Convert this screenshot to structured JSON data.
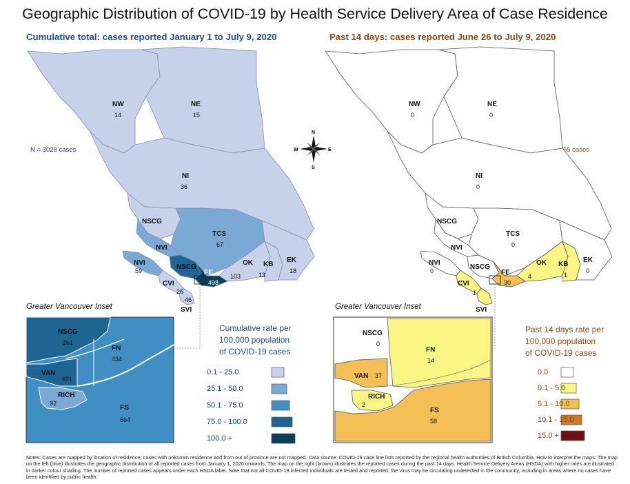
{
  "title": "Geographic Distribution of COVID-19 by Health Service Delivery Area of Case Residence",
  "left_map": {
    "subtitle": "Cumulative total: cases reported January 1 to July 9, 2020",
    "n_cases": "N = 3028 cases",
    "regions": [
      {
        "code": "NW",
        "value": "14"
      },
      {
        "code": "NE",
        "value": "15"
      },
      {
        "code": "NI",
        "value": "36"
      },
      {
        "code": "NSCG",
        "value": ""
      },
      {
        "code": "TCS",
        "value": "67"
      },
      {
        "code": "NVI",
        "value": ""
      },
      {
        "code": "NVI",
        "value": "59"
      },
      {
        "code": "NSCG",
        "value": ""
      },
      {
        "code": "OK",
        "value": "103"
      },
      {
        "code": "KB",
        "value": "13"
      },
      {
        "code": "EK",
        "value": "18"
      },
      {
        "code": "FE",
        "value": "498"
      },
      {
        "code": "CVI",
        "value": "26"
      },
      {
        "code": "SVI",
        "value": "46"
      }
    ],
    "inset_title": "Greater Vancouver Inset",
    "inset_regions": [
      {
        "code": "NSCG",
        "value": "261"
      },
      {
        "code": "FN",
        "value": "434"
      },
      {
        "code": "VAN",
        "value": "621"
      },
      {
        "code": "RICH",
        "value": "92"
      },
      {
        "code": "FS",
        "value": "664"
      }
    ],
    "legend_title": [
      "Cumulative rate per",
      "100,000 population",
      "of COVID-19 cases"
    ],
    "legend": [
      {
        "label": "0.1 - 25.0",
        "color": "#c7d1ea"
      },
      {
        "label": "25.1 - 50.0",
        "color": "#7aa9d6"
      },
      {
        "label": "50.1 - 75.0",
        "color": "#3f8fc4"
      },
      {
        "label": "75.0 - 100.0",
        "color": "#1f6591"
      },
      {
        "label": "100.0 +",
        "color": "#0c3e5a"
      }
    ]
  },
  "right_map": {
    "subtitle": "Past 14 days: cases reported June 26 to July 9, 2020",
    "n_cases": "N = 165 cases",
    "regions": [
      {
        "code": "NW",
        "value": "0"
      },
      {
        "code": "NE",
        "value": "0"
      },
      {
        "code": "NI",
        "value": "0"
      },
      {
        "code": "NSCG",
        "value": ""
      },
      {
        "code": "TCS",
        "value": "0"
      },
      {
        "code": "NVI",
        "value": ""
      },
      {
        "code": "NVI",
        "value": "0"
      },
      {
        "code": "NSCG",
        "value": ""
      },
      {
        "code": "OK",
        "value": "4"
      },
      {
        "code": "KB",
        "value": "1"
      },
      {
        "code": "EK",
        "value": "0"
      },
      {
        "code": "FE",
        "value": "30"
      },
      {
        "code": "CVI",
        "value": "1"
      },
      {
        "code": "SVI",
        "value": ""
      }
    ],
    "inset_title": "Greater Vancouver Inset",
    "inset_regions": [
      {
        "code": "NSCG",
        "value": "0"
      },
      {
        "code": "FN",
        "value": "14"
      },
      {
        "code": "VAN",
        "value": "37"
      },
      {
        "code": "RICH",
        "value": "2"
      },
      {
        "code": "FS",
        "value": "58"
      }
    ],
    "legend_title": [
      "Past 14 days rate per",
      "100,000 population",
      "of COVID-19 cases"
    ],
    "legend": [
      {
        "label": "0.0",
        "color": "#ffffff"
      },
      {
        "label": "0.1 - 5.0",
        "color": "#fbf684"
      },
      {
        "label": "5.1 - 10.0",
        "color": "#f4bf55"
      },
      {
        "label": "10.1 - 15.0",
        "color": "#d0782a"
      },
      {
        "label": "15.0 +",
        "color": "#6d0f0f"
      }
    ]
  },
  "compass": {
    "n": "N",
    "s": "S",
    "e": "E",
    "w": "W"
  },
  "notes": "Notes: Cases are mapped by location of residence; cases with unknown residence and from out of province are not mapped. Data source: COVID-19 case line lists reported by the regional health authorities of British Columbia. How to interpret the maps: The map on the left (blue) illustrates the geographic distribution of all reported cases from January 1, 2020 onwards. The map on the right (brown) illustrates the reported cases during the past 14 days. Health Service Delivery Areas (HSDA) with higher rates are illustrated in darker colour shading. The number of reported cases appears under each HSDA label. Note that not all COVID-19 infected individuals are tested and reported; the virus may be circulating undetected in the community, including in areas where no cases have been identified by public health."
}
